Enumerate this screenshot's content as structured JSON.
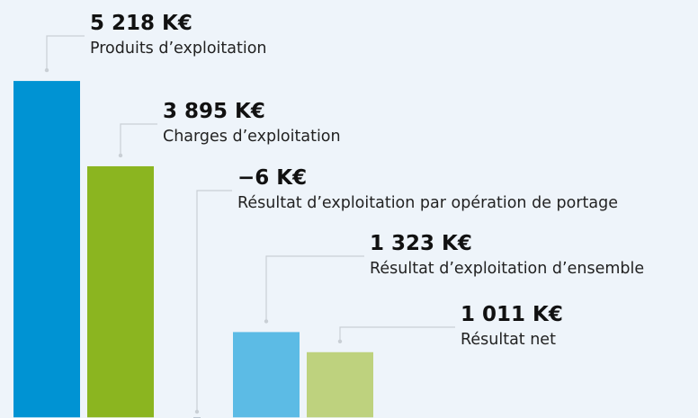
{
  "chart_data": {
    "type": "bar",
    "categories": [
      "Produits d’exploitation",
      "Charges d’exploitation",
      "Résultat d’exploitation par opération de portage",
      "Résultat d’exploitation d’ensemble",
      "Résultat net"
    ],
    "values": [
      5218,
      3895,
      -6,
      1323,
      1011
    ],
    "value_labels": [
      "5 218 K€",
      "3 895 K€",
      "−6 K€",
      "1 323 K€",
      "1 011 K€"
    ],
    "colors": [
      "#0093d3",
      "#8bb520",
      "#7a8a99",
      "#5cbbe5",
      "#bed27e"
    ],
    "ylim": [
      -10,
      6000
    ]
  }
}
